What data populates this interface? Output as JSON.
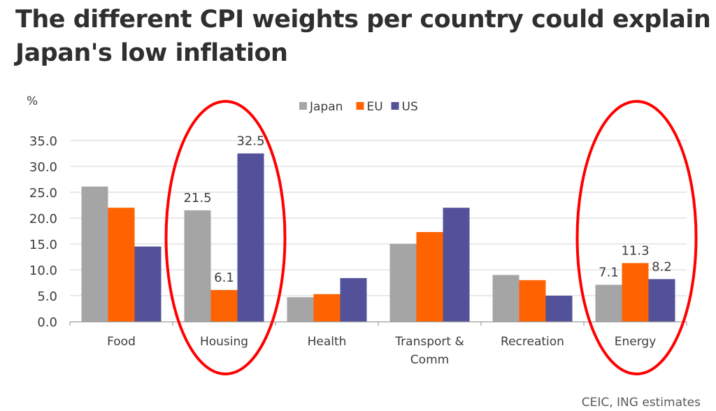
{
  "title": "The different CPI weights per country could explain Japan's low inflation",
  "source": "CEIC, ING estimates",
  "chart_data": {
    "type": "bar",
    "title": "The different CPI weights per country could explain Japan's low inflation",
    "ylabel": "%",
    "xlabel": "",
    "ylim": [
      0,
      35
    ],
    "yticks": [
      0,
      5,
      10,
      15,
      20,
      25,
      30,
      35
    ],
    "ytick_labels": [
      "0.0",
      "5.0",
      "10.0",
      "15.0",
      "20.0",
      "25.0",
      "30.0",
      "35.0"
    ],
    "grid": true,
    "legend_position": "top-center",
    "categories": [
      "Food",
      "Housing",
      "Health",
      "Transport & Comm",
      "Recreation",
      "Energy"
    ],
    "category_label_lines": [
      [
        "Food"
      ],
      [
        "Housing"
      ],
      [
        "Health"
      ],
      [
        "Transport &",
        "Comm"
      ],
      [
        "Recreation"
      ],
      [
        "Energy"
      ]
    ],
    "series": [
      {
        "name": "Japan",
        "color": "#a5a5a5",
        "values": [
          26.1,
          21.5,
          4.7,
          15.0,
          9.0,
          7.1
        ]
      },
      {
        "name": "EU",
        "color": "#ff6200",
        "values": [
          22.0,
          6.1,
          5.3,
          17.3,
          8.0,
          11.3
        ]
      },
      {
        "name": "US",
        "color": "#525199",
        "values": [
          14.5,
          32.5,
          8.4,
          22.0,
          5.0,
          8.2
        ]
      }
    ],
    "data_labels": [
      {
        "category": "Housing",
        "series": "Japan",
        "text": "21.5"
      },
      {
        "category": "Housing",
        "series": "EU",
        "text": "6.1"
      },
      {
        "category": "Housing",
        "series": "US",
        "text": "32.5"
      },
      {
        "category": "Energy",
        "series": "Japan",
        "text": "7.1"
      },
      {
        "category": "Energy",
        "series": "EU",
        "text": "11.3"
      },
      {
        "category": "Energy",
        "series": "US",
        "text": "8.2"
      }
    ],
    "annotations": [
      {
        "type": "ellipse",
        "highlight_category": "Housing",
        "color": "#ff0000"
      },
      {
        "type": "ellipse",
        "highlight_category": "Energy",
        "color": "#ff0000"
      }
    ]
  }
}
